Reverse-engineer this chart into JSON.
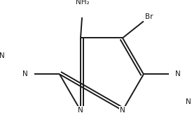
{
  "bg_color": "#ffffff",
  "line_color": "#1a1a1a",
  "line_width": 1.4,
  "font_size": 7.5,
  "figsize": [
    2.74,
    1.82
  ],
  "dpi": 100,
  "xlim": [
    -1.6,
    1.6
  ],
  "ylim": [
    -1.35,
    1.25
  ]
}
